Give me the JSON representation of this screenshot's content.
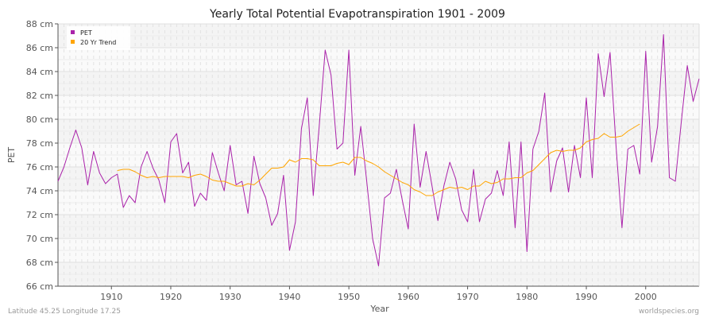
{
  "chart_data": {
    "type": "line",
    "title": "Yearly Total Potential Evapotranspiration 1901 - 2009",
    "xlabel": "Year",
    "ylabel": "PET",
    "xlim": [
      1901,
      2009
    ],
    "ylim": [
      66,
      88
    ],
    "y_unit": "cm",
    "xticks": [
      1910,
      1920,
      1930,
      1940,
      1950,
      1960,
      1970,
      1980,
      1990,
      2000
    ],
    "yticks": [
      66,
      68,
      70,
      72,
      74,
      76,
      78,
      80,
      82,
      84,
      86,
      88
    ],
    "ytick_labels": [
      "66 cm",
      "68 cm",
      "70 cm",
      "72 cm",
      "74 cm",
      "76 cm",
      "78 cm",
      "80 cm",
      "82 cm",
      "84 cm",
      "86 cm",
      "88 cm"
    ],
    "grid": true,
    "legend_position": "top-left",
    "series": [
      {
        "name": "PET",
        "color": "#aa22aa",
        "x_start": 1901,
        "values": [
          74.8,
          76.0,
          77.6,
          79.1,
          77.6,
          74.5,
          77.3,
          75.5,
          74.6,
          75.1,
          75.4,
          72.6,
          73.6,
          73.0,
          76.0,
          77.3,
          75.9,
          74.9,
          73.0,
          78.1,
          78.8,
          75.5,
          76.4,
          72.7,
          73.8,
          73.2,
          77.2,
          75.5,
          74.0,
          77.8,
          74.5,
          74.8,
          72.1,
          76.9,
          74.6,
          73.4,
          71.1,
          72.1,
          75.3,
          69.0,
          71.4,
          79.2,
          81.8,
          73.6,
          79.4,
          85.8,
          83.7,
          77.5,
          78.0,
          85.8,
          75.3,
          79.4,
          74.8,
          70.0,
          67.7,
          73.4,
          73.8,
          75.8,
          73.2,
          70.8,
          79.6,
          74.3,
          77.3,
          74.4,
          71.5,
          74.4,
          76.4,
          75.0,
          72.4,
          71.4,
          75.8,
          71.4,
          73.3,
          73.8,
          75.7,
          73.6,
          78.1,
          70.9,
          78.1,
          68.9,
          77.5,
          79.0,
          82.2,
          73.9,
          76.5,
          77.6,
          73.9,
          77.8,
          75.1,
          81.8,
          75.1,
          85.5,
          81.9,
          85.6,
          77.8,
          70.9,
          77.5,
          77.8,
          75.4,
          85.7,
          76.4,
          79.4,
          87.1,
          75.1,
          74.8,
          79.8,
          84.5,
          81.5,
          83.4
        ]
      },
      {
        "name": "20 Yr Trend",
        "color": "#ffa500",
        "x_start": 1911,
        "values": [
          75.7,
          75.8,
          75.8,
          75.6,
          75.3,
          75.1,
          75.2,
          75.1,
          75.2,
          75.2,
          75.2,
          75.2,
          75.1,
          75.3,
          75.4,
          75.2,
          74.9,
          74.8,
          74.8,
          74.6,
          74.4,
          74.4,
          74.6,
          74.5,
          74.9,
          75.4,
          75.9,
          75.9,
          76.0,
          76.6,
          76.4,
          76.7,
          76.7,
          76.6,
          76.1,
          76.1,
          76.1,
          76.3,
          76.4,
          76.2,
          76.8,
          76.8,
          76.5,
          76.3,
          76.0,
          75.6,
          75.3,
          75.0,
          74.7,
          74.5,
          74.1,
          73.9,
          73.6,
          73.6,
          73.9,
          74.1,
          74.3,
          74.2,
          74.3,
          74.1,
          74.4,
          74.4,
          74.8,
          74.6,
          74.7,
          75.0,
          75.0,
          75.1,
          75.1,
          75.5,
          75.7,
          76.2,
          76.7,
          77.2,
          77.4,
          77.3,
          77.4,
          77.4,
          77.6,
          78.1,
          78.3,
          78.4,
          78.8,
          78.5,
          78.5,
          78.6,
          79.0,
          79.3,
          79.6
        ]
      }
    ]
  },
  "footer": {
    "location": "Latitude 45.25 Longitude 17.25",
    "source": "worldspecies.org"
  }
}
